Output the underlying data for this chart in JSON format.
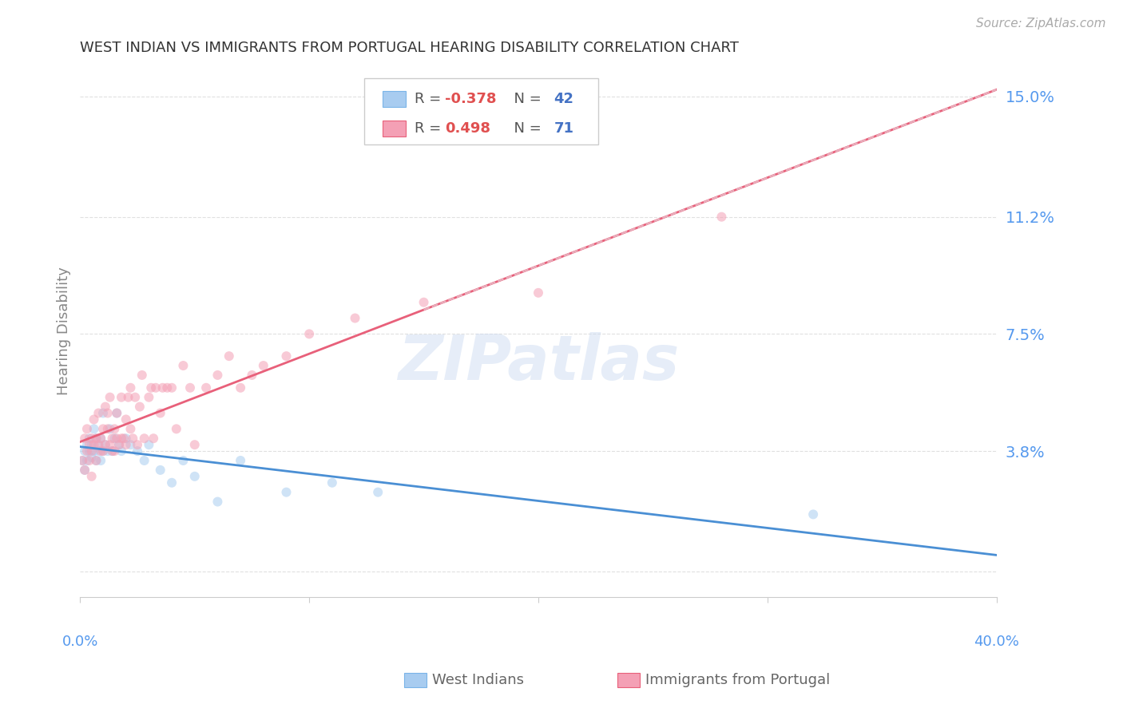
{
  "title": "WEST INDIAN VS IMMIGRANTS FROM PORTUGAL HEARING DISABILITY CORRELATION CHART",
  "source": "Source: ZipAtlas.com",
  "ylabel": "Hearing Disability",
  "xlim": [
    0.0,
    0.4
  ],
  "ylim": [
    -0.008,
    0.16
  ],
  "watermark": "ZIPatlas",
  "yticks": [
    0.0,
    0.038,
    0.075,
    0.112,
    0.15
  ],
  "ytick_labels": [
    "",
    "3.8%",
    "7.5%",
    "11.2%",
    "15.0%"
  ],
  "xtick_positions": [
    0.0,
    0.1,
    0.2,
    0.3,
    0.4
  ],
  "series": [
    {
      "name": "West Indians",
      "R": -0.378,
      "N": 42,
      "color": "#a8ccf0",
      "line_color": "#4a8fd4",
      "x": [
        0.001,
        0.002,
        0.002,
        0.003,
        0.003,
        0.004,
        0.004,
        0.005,
        0.005,
        0.006,
        0.006,
        0.007,
        0.007,
        0.008,
        0.008,
        0.009,
        0.009,
        0.01,
        0.01,
        0.011,
        0.012,
        0.013,
        0.014,
        0.015,
        0.016,
        0.017,
        0.018,
        0.02,
        0.022,
        0.025,
        0.028,
        0.03,
        0.035,
        0.04,
        0.045,
        0.05,
        0.06,
        0.07,
        0.09,
        0.11,
        0.13,
        0.32
      ],
      "y": [
        0.035,
        0.038,
        0.032,
        0.04,
        0.035,
        0.038,
        0.042,
        0.036,
        0.04,
        0.038,
        0.045,
        0.042,
        0.035,
        0.038,
        0.04,
        0.042,
        0.035,
        0.038,
        0.05,
        0.04,
        0.038,
        0.045,
        0.038,
        0.042,
        0.05,
        0.04,
        0.038,
        0.042,
        0.04,
        0.038,
        0.035,
        0.04,
        0.032,
        0.028,
        0.035,
        0.03,
        0.022,
        0.035,
        0.025,
        0.028,
        0.025,
        0.018
      ]
    },
    {
      "name": "Immigrants from Portugal",
      "R": 0.498,
      "N": 71,
      "color": "#f4a0b5",
      "line_color": "#e8607a",
      "x": [
        0.001,
        0.002,
        0.002,
        0.003,
        0.003,
        0.004,
        0.004,
        0.005,
        0.005,
        0.005,
        0.006,
        0.006,
        0.007,
        0.007,
        0.008,
        0.008,
        0.009,
        0.009,
        0.01,
        0.01,
        0.011,
        0.011,
        0.012,
        0.012,
        0.013,
        0.013,
        0.014,
        0.014,
        0.015,
        0.015,
        0.016,
        0.016,
        0.017,
        0.018,
        0.018,
        0.019,
        0.02,
        0.02,
        0.021,
        0.022,
        0.022,
        0.023,
        0.024,
        0.025,
        0.026,
        0.027,
        0.028,
        0.03,
        0.031,
        0.032,
        0.033,
        0.035,
        0.036,
        0.038,
        0.04,
        0.042,
        0.045,
        0.048,
        0.05,
        0.055,
        0.06,
        0.065,
        0.07,
        0.075,
        0.08,
        0.09,
        0.1,
        0.12,
        0.15,
        0.2,
        0.28
      ],
      "y": [
        0.035,
        0.042,
        0.032,
        0.038,
        0.045,
        0.04,
        0.035,
        0.042,
        0.038,
        0.03,
        0.04,
        0.048,
        0.042,
        0.035,
        0.04,
        0.05,
        0.042,
        0.038,
        0.045,
        0.038,
        0.052,
        0.04,
        0.045,
        0.05,
        0.04,
        0.055,
        0.042,
        0.038,
        0.045,
        0.038,
        0.05,
        0.042,
        0.04,
        0.055,
        0.042,
        0.042,
        0.048,
        0.04,
        0.055,
        0.058,
        0.045,
        0.042,
        0.055,
        0.04,
        0.052,
        0.062,
        0.042,
        0.055,
        0.058,
        0.042,
        0.058,
        0.05,
        0.058,
        0.058,
        0.058,
        0.045,
        0.065,
        0.058,
        0.04,
        0.058,
        0.062,
        0.068,
        0.058,
        0.062,
        0.065,
        0.068,
        0.075,
        0.08,
        0.085,
        0.088,
        0.112
      ]
    }
  ],
  "trendline_dashed_color": "#e8b0be",
  "background_color": "#ffffff",
  "grid_color": "#e0e0e0",
  "tick_label_color": "#5599ee",
  "title_color": "#333333",
  "marker_size": 75,
  "marker_alpha": 0.55,
  "legend_R_color": "#e05050",
  "legend_N_color": "#4472c4",
  "legend_text_color": "#555555"
}
